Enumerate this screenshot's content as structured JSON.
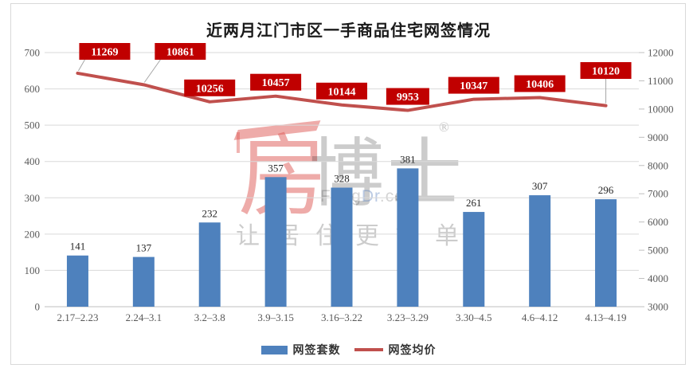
{
  "title": "近两月江门市区一手商品住宅网签情况",
  "chart_data": {
    "type": "bar",
    "subtype": "combo bar+line, dual axis",
    "categories": [
      "2.17–2.23",
      "2.24–3.1",
      "3.2–3.8",
      "3.9–3.15",
      "3.16–3.22",
      "3.23–3.29",
      "3.30–4.5",
      "4.6–4.12",
      "4.13–4.19"
    ],
    "series": [
      {
        "name": "网签套数",
        "type": "bar",
        "axis": "left",
        "values": [
          141,
          137,
          232,
          357,
          328,
          381,
          261,
          307,
          296
        ],
        "color": "#4E81BD"
      },
      {
        "name": "网签均价",
        "type": "line",
        "axis": "right",
        "values": [
          11269,
          10861,
          10256,
          10457,
          10144,
          9953,
          10347,
          10406,
          10120
        ],
        "color": "#C0504D",
        "label_bg": "#C00000",
        "label_text": "#FFFFFF"
      }
    ],
    "title": "近两月江门市区一手商品住宅网签情况",
    "xlabel": "",
    "ylabel_left": "",
    "ylabel_right": "",
    "left_axis": {
      "min": 0,
      "max": 700,
      "step": 100
    },
    "right_axis": {
      "min": 3000,
      "max": 12000,
      "step": 1000
    },
    "grid": "horizontal gridlines follow left axis",
    "legend_position": "bottom-center",
    "colors": {
      "grid": "#D9D9D9",
      "axis_line": "#BFBFBF",
      "tick_text": "#595959",
      "bar_label_text": "#262626",
      "leader_line": "#A6A6A6"
    }
  },
  "legend": {
    "bar_label": "网签套数",
    "line_label": "网签均价"
  },
  "watermark": {
    "brand_first": "房",
    "brand_rest": "博士",
    "registered_mark": "®",
    "domain_part1": "Fang",
    "domain_part2": "Dr",
    "domain_part3": ".com",
    "slogan": "让居住更简单"
  }
}
